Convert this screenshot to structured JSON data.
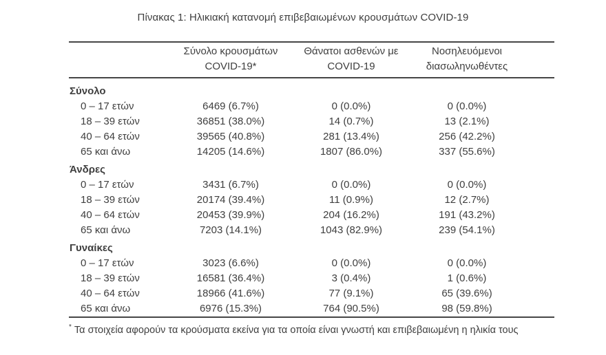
{
  "title": "Πίνακας 1: Ηλικιακή κατανομή επιβεβαιωμένων κρουσμάτων COVID-19",
  "table": {
    "columns": {
      "cases_line1": "Σύνολο κρουσμάτων",
      "cases_line2": "COVID-19*",
      "deaths_line1": "Θάνατοι ασθενών με",
      "deaths_line2": "COVID-19",
      "intubated_line1": "Νοσηλευόμενοι",
      "intubated_line2": "διασωληνωθέντες"
    },
    "sections": [
      {
        "label": "Σύνολο",
        "rows": [
          {
            "age": "0 – 17 ετών",
            "cases": "6469 (6.7%)",
            "deaths": "0 (0.0%)",
            "intubated": "0 (0.0%)"
          },
          {
            "age": "18 – 39 ετών",
            "cases": "36851 (38.0%)",
            "deaths": "14 (0.7%)",
            "intubated": "13 (2.1%)"
          },
          {
            "age": "40 – 64 ετών",
            "cases": "39565 (40.8%)",
            "deaths": "281 (13.4%)",
            "intubated": "256 (42.2%)"
          },
          {
            "age": "65 και άνω",
            "cases": "14205 (14.6%)",
            "deaths": "1807 (86.0%)",
            "intubated": "337 (55.6%)"
          }
        ]
      },
      {
        "label": "Άνδρες",
        "rows": [
          {
            "age": "0 – 17 ετών",
            "cases": "3431 (6.7%)",
            "deaths": "0 (0.0%)",
            "intubated": "0 (0.0%)"
          },
          {
            "age": "18 – 39 ετών",
            "cases": "20174 (39.4%)",
            "deaths": "11 (0.9%)",
            "intubated": "12 (2.7%)"
          },
          {
            "age": "40 – 64 ετών",
            "cases": "20453 (39.9%)",
            "deaths": "204 (16.2%)",
            "intubated": "191 (43.2%)"
          },
          {
            "age": "65 και άνω",
            "cases": "7203 (14.1%)",
            "deaths": "1043 (82.9%)",
            "intubated": "239 (54.1%)"
          }
        ]
      },
      {
        "label": "Γυναίκες",
        "rows": [
          {
            "age": "0 – 17 ετών",
            "cases": "3023 (6.6%)",
            "deaths": "0 (0.0%)",
            "intubated": "0 (0.0%)"
          },
          {
            "age": "18 – 39 ετών",
            "cases": "16581 (36.4%)",
            "deaths": "3 (0.4%)",
            "intubated": "1 (0.6%)"
          },
          {
            "age": "40 – 64 ετών",
            "cases": "18966 (41.6%)",
            "deaths": "77 (9.1%)",
            "intubated": "65 (39.6%)"
          },
          {
            "age": "65 και άνω",
            "cases": "6976 (15.3%)",
            "deaths": "764 (90.5%)",
            "intubated": "98 (59.8%)"
          }
        ]
      }
    ],
    "footnote_marker": "*",
    "footnote": "Τα στοιχεία αφορούν τα κρούσματα εκείνα για τα οποία είναι γνωστή και επιβεβαιωμένη η ηλικία τους"
  },
  "colors": {
    "text": "#3e3e3e",
    "rule": "#454545",
    "background": "#ffffff"
  }
}
